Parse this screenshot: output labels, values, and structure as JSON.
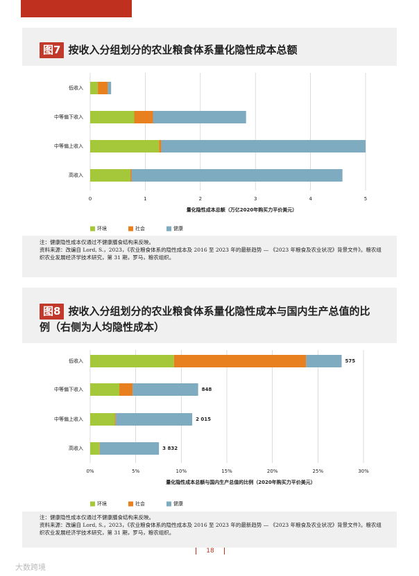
{
  "chart_data": [
    {
      "type": "barh-stacked",
      "figure_label": "图7",
      "title": "按收入分组划分的农业粮食体系量化隐性成本总额",
      "categories": [
        "低收入",
        "中等偏下收入",
        "中等偏上收入",
        "高收入"
      ],
      "series": [
        {
          "name": "环境",
          "color": "#a5c83b",
          "values": [
            0.14,
            0.8,
            1.25,
            0.73
          ]
        },
        {
          "name": "社会",
          "color": "#e8801f",
          "values": [
            0.18,
            0.34,
            0.04,
            0.02
          ]
        },
        {
          "name": "健康",
          "color": "#7eabbf",
          "values": [
            0.06,
            1.69,
            3.71,
            3.83
          ]
        }
      ],
      "xlim": [
        0,
        5
      ],
      "xticks": [
        0,
        1,
        2,
        3,
        4,
        5
      ],
      "grid": true,
      "x_label": "量化隐性成本总额（万亿2020年购买力平价美元）",
      "note": "注：健康隐性成本仅通过不健康膳食结构来反映。",
      "source": "资料来源：改编自 Lord, S.，2023，《农业粮食体系的隐性成本及 2016 至 2023 年的最新趋势 — 《2023 年粮食及农业状况》背景文件》。粮农组织农业发展经济学技术研究，第 31 期，罗马，粮农组织。"
    },
    {
      "type": "barh-stacked",
      "figure_label": "图8",
      "title": "按收入分组划分的农业粮食体系量化隐性成本与国内生产总值的比例（右侧为人均隐性成本）",
      "categories": [
        "低收入",
        "中等偏下收入",
        "中等偏上收入",
        "高收入"
      ],
      "series": [
        {
          "name": "环境",
          "color": "#a5c83b",
          "values": [
            9.2,
            3.2,
            2.7,
            1.0
          ]
        },
        {
          "name": "社会",
          "color": "#e8801f",
          "values": [
            14.5,
            1.45,
            0.1,
            0.05
          ]
        },
        {
          "name": "健康",
          "color": "#7eabbf",
          "values": [
            3.9,
            7.2,
            8.4,
            6.5
          ]
        }
      ],
      "per_capita_cost": {
        "values": [
          575,
          848,
          2015,
          3832
        ],
        "value_labels": [
          "575",
          "848",
          "2 015",
          "3 832"
        ]
      },
      "xlim": [
        0,
        30
      ],
      "xticks": [
        {
          "value": 0,
          "label": "0%"
        },
        {
          "value": 5,
          "label": "5%"
        },
        {
          "value": 10,
          "label": "10%"
        },
        {
          "value": 15,
          "label": "15%"
        },
        {
          "value": 20,
          "label": "20%"
        },
        {
          "value": 25,
          "label": "25%"
        },
        {
          "value": 30,
          "label": "30%"
        }
      ],
      "grid": true,
      "x_label": "量化隐性成本总额与国内生产总值的比例（2020年购买力平价美元）",
      "note": "注：健康隐性成本仅通过不健康膳食结构来反映。",
      "source": "资料来源：改编自 Lord, S.，2023，《农业粮食体系的隐性成本及 2016 至 2023 年的最新趋势 — 《2023 年粮食及农业状况》背景文件》。粮农组织农业发展经济学技术研究，第 31 期，罗马，粮农组织。"
    }
  ],
  "page_number": "18",
  "watermark": "大数跨境"
}
